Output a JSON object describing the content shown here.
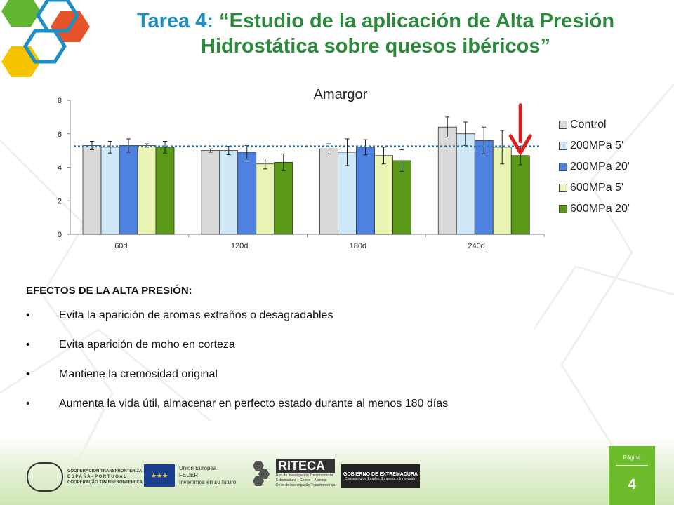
{
  "slide": {
    "title_prefix": "Tarea 4:",
    "title_rest": " “Estudio de la aplicación de Alta Presión Hidrostática sobre quesos ibéricos”"
  },
  "chart_data": {
    "type": "bar",
    "title": "Amargor",
    "xlabel": "",
    "ylabel": "",
    "categories": [
      "60d",
      "120d",
      "180d",
      "240d"
    ],
    "ylim": [
      0,
      8
    ],
    "yticks": [
      "0",
      "2",
      "4",
      "6",
      "8"
    ],
    "legend_position": "right",
    "reference_line": 5.25,
    "highlight": {
      "category": "240d",
      "series": "600MPa 20'"
    },
    "series": [
      {
        "name": "Control",
        "color": "#d9d9d9",
        "values": [
          5.3,
          5.0,
          5.1,
          6.4
        ],
        "errors": [
          0.25,
          0.1,
          0.3,
          0.6
        ]
      },
      {
        "name": "200MPa 5'",
        "color": "#cfe8f8",
        "values": [
          5.2,
          5.0,
          4.9,
          6.0
        ],
        "errors": [
          0.35,
          0.25,
          0.8,
          0.7
        ]
      },
      {
        "name": "200MPa 20'",
        "color": "#4f81e0",
        "values": [
          5.3,
          4.9,
          5.2,
          5.6
        ],
        "errors": [
          0.4,
          0.4,
          0.45,
          0.8
        ]
      },
      {
        "name": "600MPa 5'",
        "color": "#e8f5b4",
        "values": [
          5.3,
          4.2,
          4.7,
          5.2
        ],
        "errors": [
          0.1,
          0.3,
          0.5,
          1.0
        ]
      },
      {
        "name": "600MPa 20'",
        "color": "#5a9a18",
        "values": [
          5.2,
          4.3,
          4.4,
          4.7
        ],
        "errors": [
          0.35,
          0.5,
          0.65,
          0.55
        ]
      }
    ]
  },
  "effects": {
    "heading": "EFECTOS DE LA  ALTA PRESIÓN:",
    "bullet": "•",
    "items": [
      "Evita la aparición de aromas extraños o desagradables",
      "Evita aparición de moho en corteza",
      "Mantiene la cremosidad original",
      "Aumenta la vida útil, almacenar en perfecto estado durante al menos 180 días"
    ]
  },
  "footer": {
    "cooperacion": [
      "COOPERACION TRANSFRONTERIZA",
      "E S P A Ñ A  –  P O R T U G A L",
      "COOPERAÇÃO TRANSFRONTEIRIÇA"
    ],
    "ue_lines": [
      "Unión Europea",
      "FEDER",
      "Invertimos en su futuro"
    ],
    "riteca_name": "RITECA",
    "riteca_lines": [
      "Red de Investigación Transfronteriza",
      "Extremadura – Centro – Alentejo",
      "Rede de Investigação Transfronteiriça"
    ],
    "gobierno_1": "GOBIERNO DE EXTREMADURA",
    "gobierno_2": "Consejería de Empleo, Empresa e Innovación",
    "page_label": "Página",
    "page_number": "4"
  },
  "colors": {
    "title_green": "#2b8a3b",
    "title_blue": "#1f8fc1",
    "reference_line": "#2b78b8",
    "arrow": "#e01b1b",
    "badge": "#6cbc2c"
  }
}
